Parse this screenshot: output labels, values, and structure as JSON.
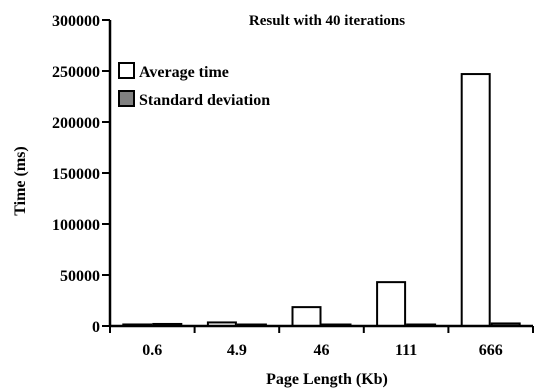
{
  "chart_data": {
    "type": "bar",
    "title": "Result with 40 iterations",
    "xlabel": "Page Length (Kb)",
    "ylabel": "Time (ms)",
    "ylim": [
      0,
      300000
    ],
    "yticks": [
      0,
      50000,
      100000,
      150000,
      200000,
      250000,
      300000
    ],
    "categories": [
      "0.6",
      "4.9",
      "46",
      "111",
      "666"
    ],
    "series": [
      {
        "name": "Average time",
        "values": [
          1500,
          3500,
          18500,
          43000,
          247000
        ],
        "color": "#ffffff"
      },
      {
        "name": "Standard deviation",
        "values": [
          2000,
          500,
          500,
          500,
          2500
        ],
        "color": "#808080"
      }
    ],
    "legend_position": "top-left",
    "grid": false
  }
}
